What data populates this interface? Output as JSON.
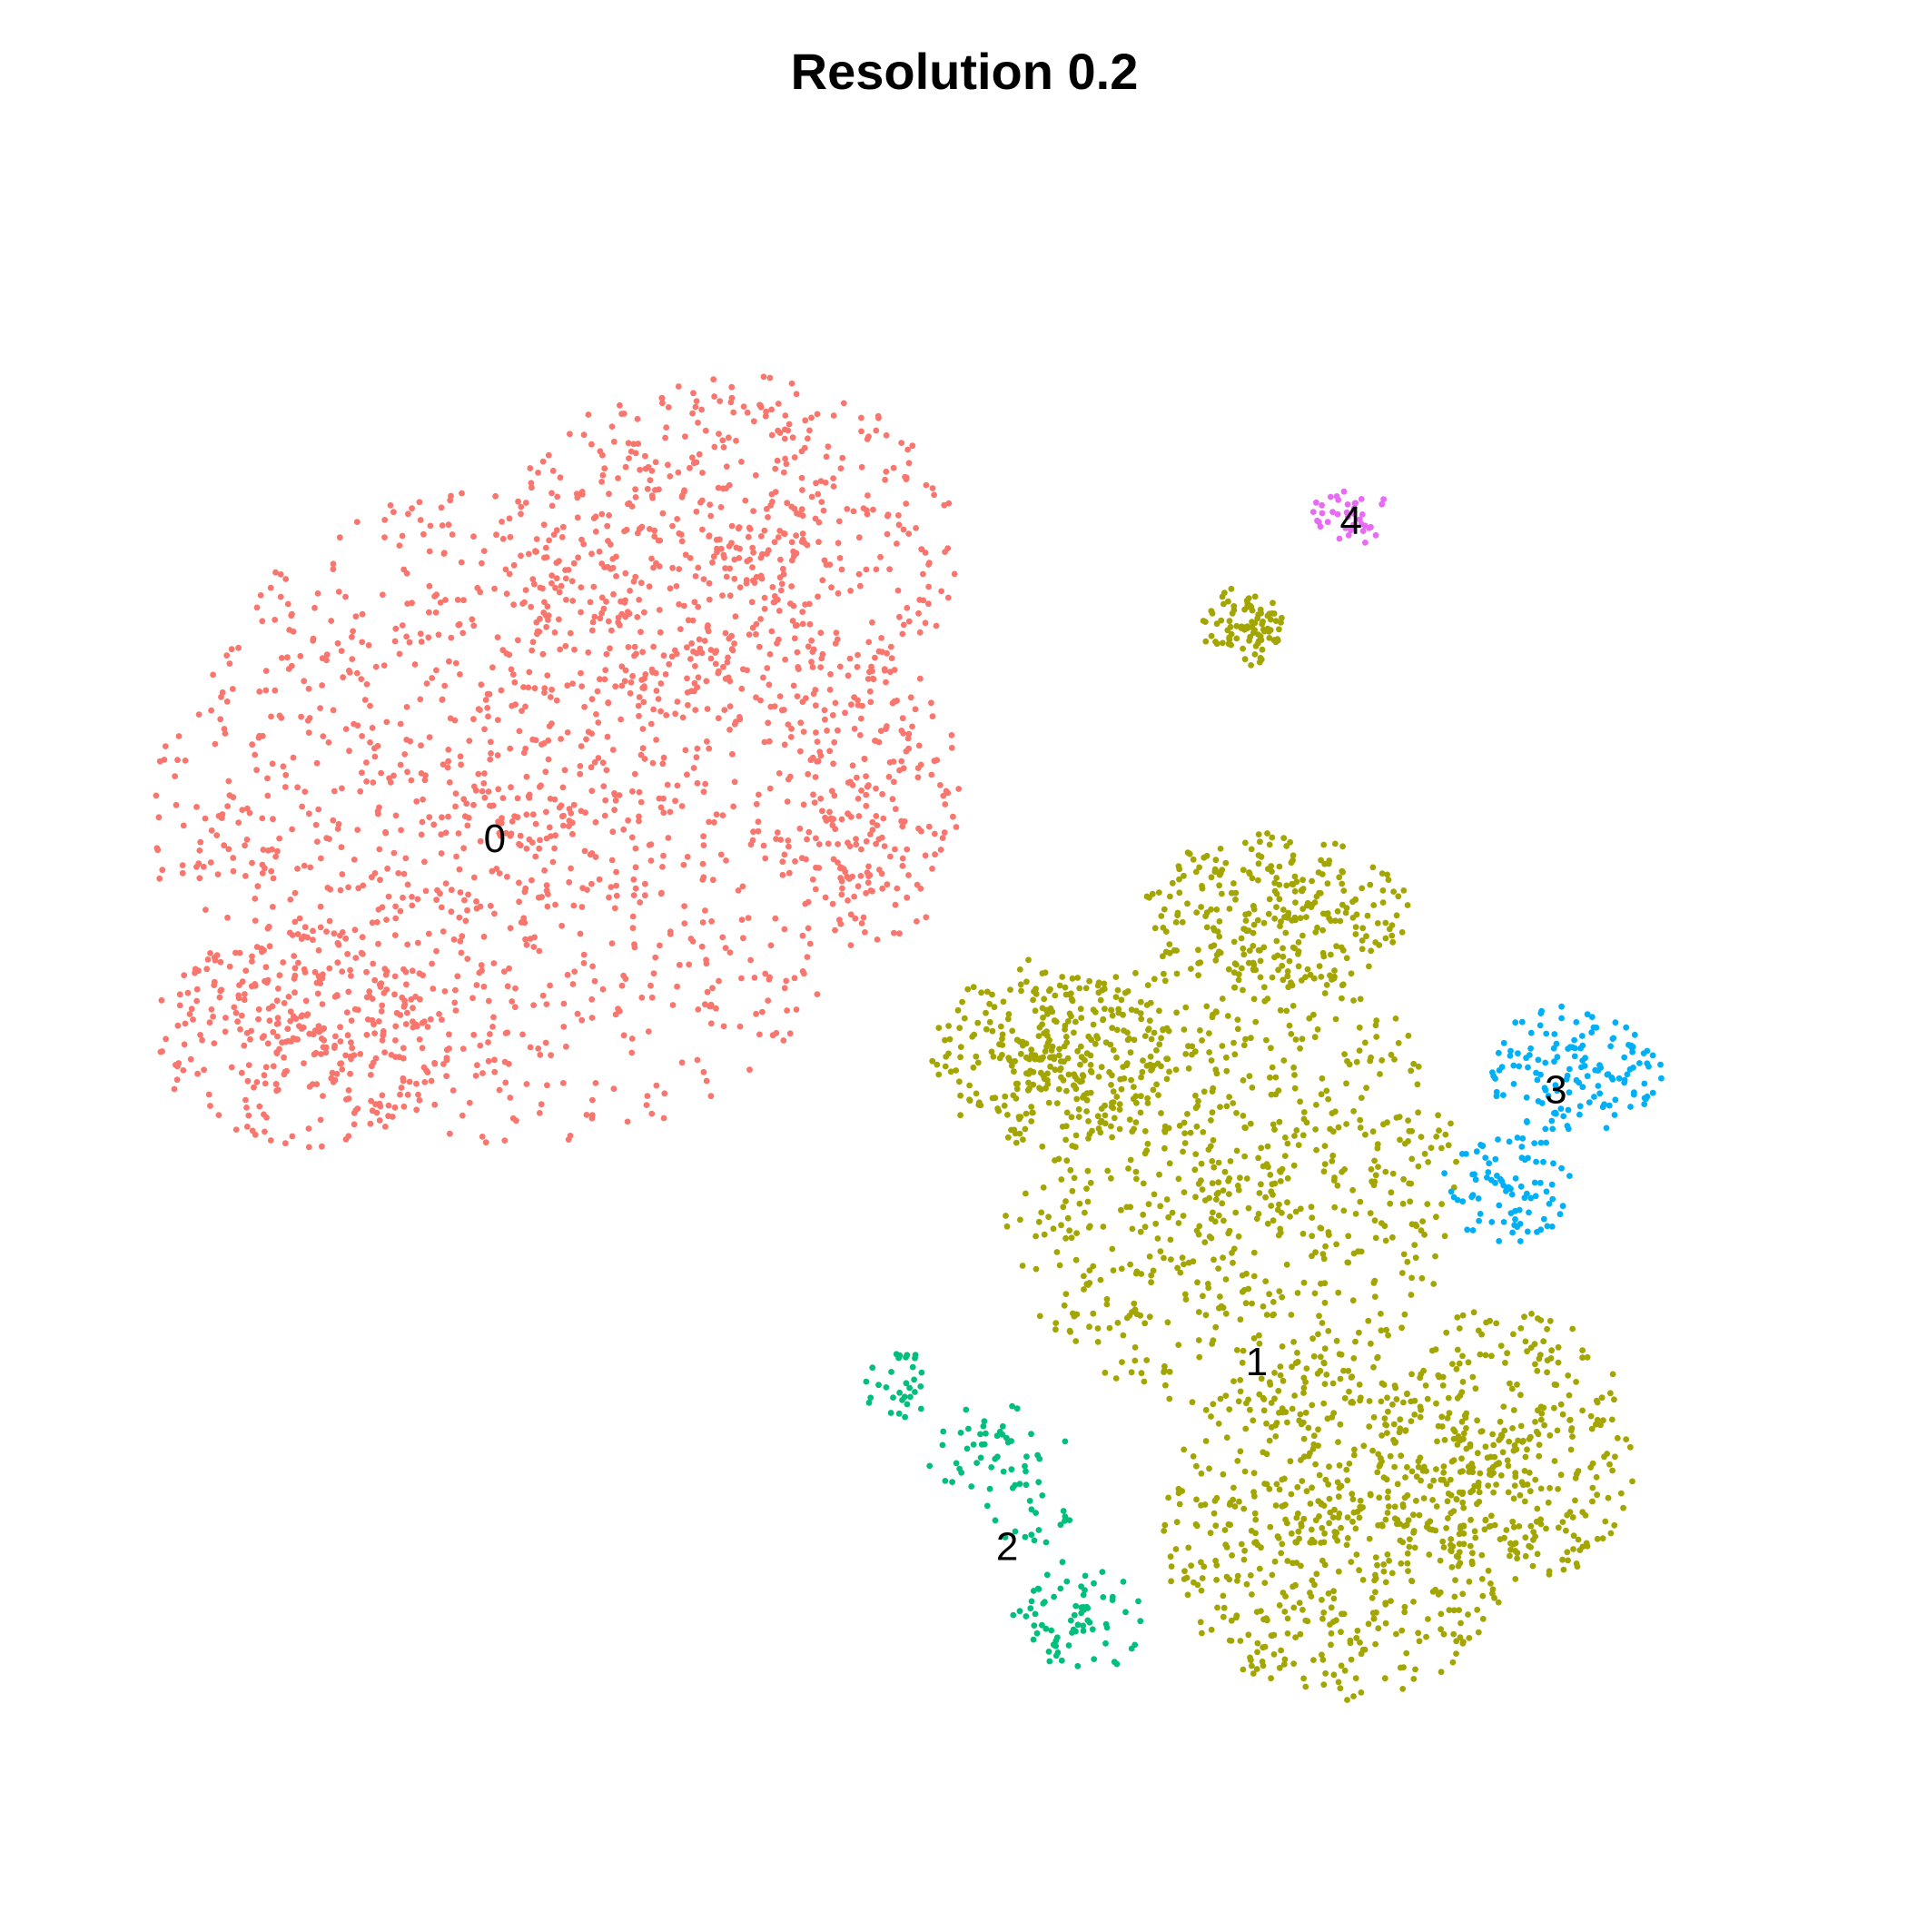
{
  "chart_data": {
    "type": "scatter",
    "title": "Resolution 0.2",
    "xlabel": "",
    "ylabel": "",
    "axes_visible": false,
    "grid": false,
    "legend": "none",
    "xlim": [
      0,
      100
    ],
    "ylim": [
      0,
      100
    ],
    "clusters": [
      {
        "label": "0",
        "color": "#F8766D",
        "label_pos": [
          21.7,
          59.6
        ],
        "count": 2200,
        "regions": [
          {
            "type": "ellipse",
            "center": [
              23,
              61
            ],
            "radius": [
              22,
              21
            ],
            "weight": 0.56
          },
          {
            "type": "ellipse",
            "center": [
              36,
              78
            ],
            "radius": [
              14,
              11
            ],
            "weight": 0.24
          },
          {
            "type": "ellipse",
            "center": [
              10,
              47
            ],
            "radius": [
              9,
              7
            ],
            "weight": 0.12
          },
          {
            "type": "ellipse",
            "center": [
              45,
              62
            ],
            "radius": [
              5,
              9
            ],
            "weight": 0.08
          }
        ]
      },
      {
        "label": "1",
        "color": "#A3A500",
        "label_pos": [
          67.8,
          26.5
        ],
        "count": 2300,
        "regions": [
          {
            "type": "ellipse",
            "center": [
              66,
              38
            ],
            "radius": [
              14,
              15
            ],
            "weight": 0.32
          },
          {
            "type": "ellipse",
            "center": [
              73,
              16
            ],
            "radius": [
              11,
              11
            ],
            "weight": 0.26
          },
          {
            "type": "ellipse",
            "center": [
              83,
              21
            ],
            "radius": [
              8,
              9
            ],
            "weight": 0.14
          },
          {
            "type": "ellipse",
            "center": [
              55,
              46
            ],
            "radius": [
              7,
              6
            ],
            "weight": 0.12
          },
          {
            "type": "ellipse",
            "center": [
              69,
              55
            ],
            "radius": [
              8,
              5
            ],
            "weight": 0.12
          },
          {
            "type": "ellipse",
            "center": [
              67,
              73
            ],
            "radius": [
              2.5,
              2.5
            ],
            "weight": 0.04
          }
        ]
      },
      {
        "label": "2",
        "color": "#00BF7D",
        "label_pos": [
          52.7,
          14.8
        ],
        "count": 170,
        "regions": [
          {
            "type": "ellipse",
            "center": [
              57,
              10
            ],
            "radius": [
              4,
              3.5
            ],
            "weight": 0.42
          },
          {
            "type": "ellipse",
            "center": [
              52,
              21
            ],
            "radius": [
              4.5,
              3
            ],
            "weight": 0.28
          },
          {
            "type": "ellipse",
            "center": [
              46,
              25
            ],
            "radius": [
              2.5,
              2.5
            ],
            "weight": 0.18
          },
          {
            "type": "ellipse",
            "center": [
              54,
              16
            ],
            "radius": [
              3,
              3
            ],
            "weight": 0.12
          }
        ]
      },
      {
        "label": "3",
        "color": "#00B0F6",
        "label_pos": [
          85.9,
          43.7
        ],
        "count": 230,
        "regions": [
          {
            "type": "ellipse",
            "center": [
              87,
              45
            ],
            "radius": [
              5.5,
              4
            ],
            "weight": 0.62
          },
          {
            "type": "ellipse",
            "center": [
              83,
              37.5
            ],
            "radius": [
              4,
              3.5
            ],
            "weight": 0.38
          }
        ]
      },
      {
        "label": "4",
        "color": "#E76BF3",
        "label_pos": [
          73.5,
          79.7
        ],
        "count": 40,
        "regions": [
          {
            "type": "ellipse",
            "center": [
              73.5,
              80
            ],
            "radius": [
              2.5,
              1.8
            ],
            "weight": 1.0
          }
        ]
      }
    ]
  }
}
